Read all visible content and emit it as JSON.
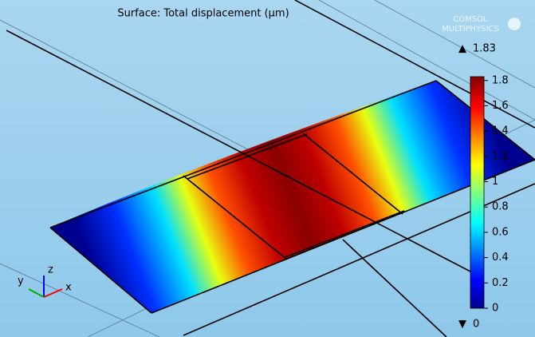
{
  "title": "Surface: Total displacement (μm)",
  "logo": {
    "line1": "COMSOL",
    "line2": "MULTIPHYSICS"
  },
  "color_legend": {
    "max": 1.83,
    "min": 0,
    "ticks": [
      0,
      0.2,
      0.4,
      0.6,
      0.8,
      1,
      1.2,
      1.4,
      1.6,
      1.8
    ]
  },
  "axes_triad": {
    "x": "x",
    "y": "y",
    "z": "z"
  }
}
